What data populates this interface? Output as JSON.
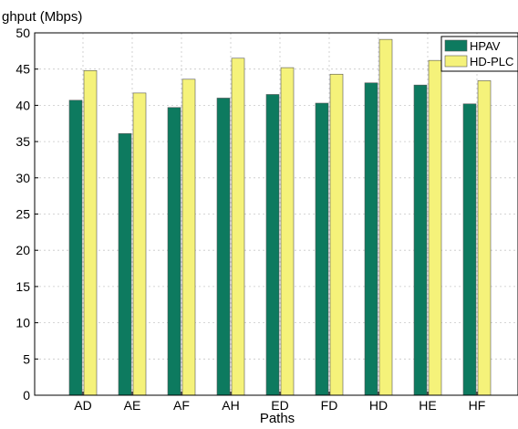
{
  "chart_data": {
    "type": "bar",
    "title": "",
    "ylabel": "ghput (Mbps)",
    "xlabel": "Paths",
    "categories": [
      "AD",
      "AE",
      "AF",
      "AH",
      "ED",
      "FD",
      "HD",
      "HE",
      "HF"
    ],
    "series": [
      {
        "name": "HPAV",
        "values": [
          40.7,
          36.1,
          39.7,
          41.0,
          41.5,
          40.3,
          43.1,
          42.8,
          40.2
        ]
      },
      {
        "name": "HD-PLC",
        "values": [
          44.8,
          41.7,
          43.6,
          46.5,
          45.2,
          44.3,
          49.1,
          46.2,
          43.4
        ]
      }
    ],
    "ylim": [
      0,
      50
    ],
    "yticks": [
      0,
      5,
      10,
      15,
      20,
      25,
      30,
      35,
      40,
      45,
      50
    ],
    "grid": true,
    "legend_position": "top-right",
    "colors": {
      "HPAV": "#0d7a5f",
      "HD-PLC": "#f5f27a"
    }
  }
}
